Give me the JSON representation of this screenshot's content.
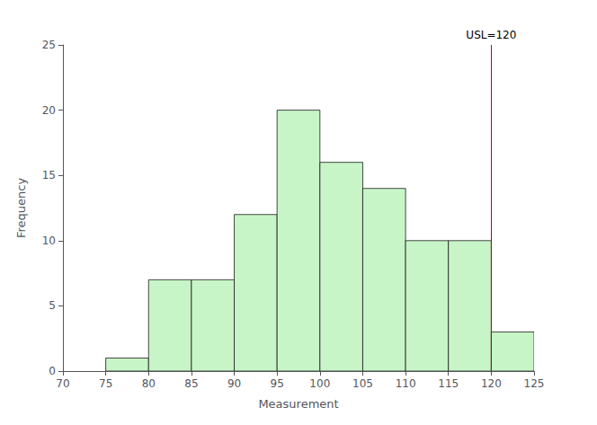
{
  "chart_data": {
    "type": "histogram",
    "xlabel": "Measurement",
    "ylabel": "Frequency",
    "bins": [
      75,
      80,
      85,
      90,
      95,
      100,
      105,
      110,
      115,
      120,
      125
    ],
    "values": [
      1,
      7,
      7,
      12,
      20,
      16,
      14,
      10,
      10,
      3
    ],
    "color": "#c8f5c8",
    "xlim": [
      70,
      125
    ],
    "xticks": [
      70,
      75,
      80,
      85,
      90,
      95,
      100,
      105,
      110,
      115,
      120,
      125
    ],
    "ylim": [
      0,
      25
    ],
    "yticks": [
      0,
      5,
      10,
      15,
      20,
      25
    ],
    "grid": false,
    "annotations": [
      {
        "x": 120,
        "text": "USL=120",
        "color": "#cc0000"
      }
    ]
  }
}
